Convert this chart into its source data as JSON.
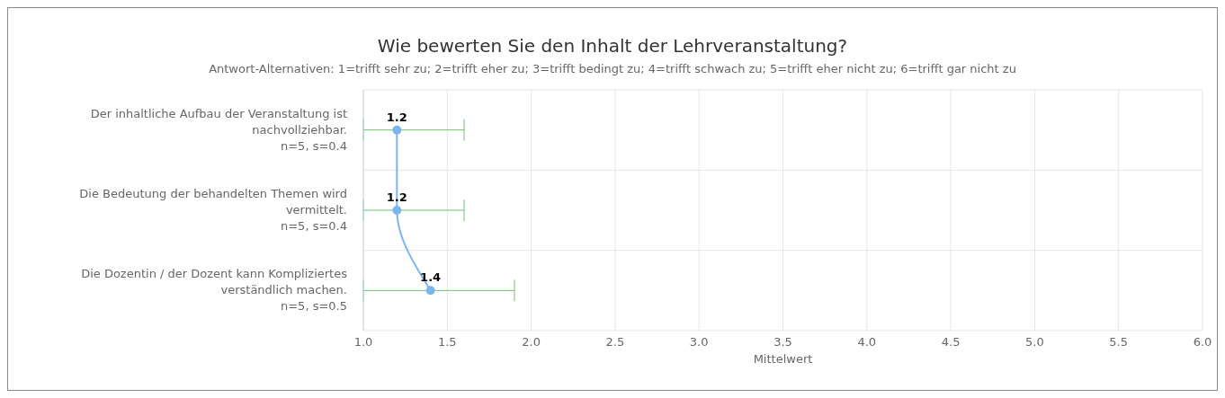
{
  "chart_data": {
    "type": "line",
    "title": "Wie bewerten Sie den Inhalt der Lehrveranstaltung?",
    "subtitle": "Antwort-Alternativen: 1=trifft sehr zu; 2=trifft eher zu; 3=trifft bedingt zu; 4=trifft schwach zu; 5=trifft eher nicht zu; 6=trifft gar nicht zu",
    "xlabel": "Mittelwert",
    "orientation": "horizontal",
    "categories": [
      "Der inhaltliche Aufbau der Veranstaltung ist nachvollziehbar.\nn=5, s=0.4",
      "Die Bedeutung der behandelten Themen wird vermittelt.\nn=5, s=0.4",
      "Die Dozentin / der Dozent kann Kompliziertes verständlich machen.\nn=5, s=0.5"
    ],
    "series": [
      {
        "color": "#7cb5ec",
        "values": [
          1.2,
          1.2,
          1.4
        ],
        "errors": [
          [
            1.0,
            1.6
          ],
          [
            1.0,
            1.6
          ],
          [
            1.0,
            1.9
          ]
        ]
      }
    ],
    "xlim": [
      1,
      6
    ],
    "xticks": [
      {
        "value": 1,
        "label": "1.0"
      },
      {
        "value": 1.5,
        "label": "1.5"
      },
      {
        "value": 2,
        "label": "2.0"
      },
      {
        "value": 2.5,
        "label": "2.5"
      },
      {
        "value": 3,
        "label": "3.0"
      },
      {
        "value": 3.5,
        "label": "3.5"
      },
      {
        "value": 4,
        "label": "4.0"
      },
      {
        "value": 4.5,
        "label": "4.5"
      },
      {
        "value": 5,
        "label": "5.0"
      },
      {
        "value": 5.5,
        "label": "5.5"
      },
      {
        "value": 6,
        "label": "6.0"
      }
    ],
    "grid": true,
    "marker": "circle",
    "data_labels": true
  }
}
